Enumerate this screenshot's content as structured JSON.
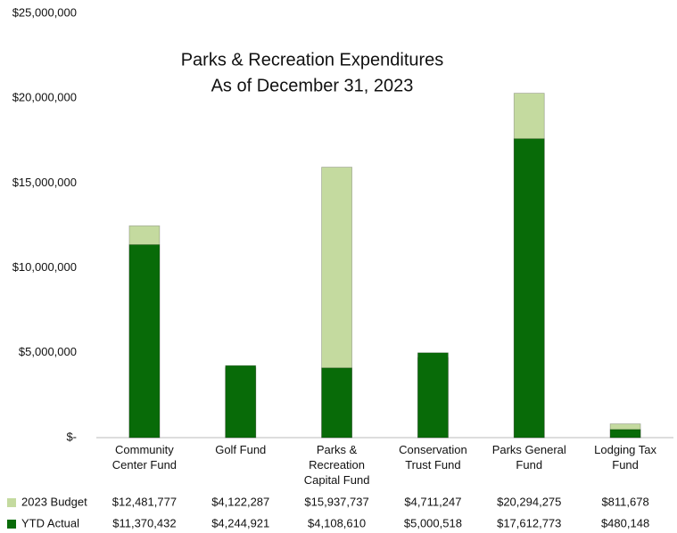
{
  "chart_data": {
    "type": "bar",
    "title": "Parks & Recreation Expenditures",
    "subtitle": "As of December 31, 2023",
    "categories": [
      "Community Center Fund",
      "Golf Fund",
      "Parks & Recreation Capital Fund",
      "Conservation Trust Fund",
      "Parks General Fund",
      "Lodging Tax Fund"
    ],
    "series": [
      {
        "name": "2023 Budget",
        "color": "#c4da9f",
        "values": [
          12481777,
          4122287,
          15937737,
          4711247,
          20294275,
          811678
        ],
        "value_labels": [
          "$12,481,777",
          "$4,122,287",
          "$15,937,737",
          "$4,711,247",
          "$20,294,275",
          "$811,678"
        ]
      },
      {
        "name": "YTD Actual",
        "color": "#086b08",
        "values": [
          11370432,
          4244921,
          4108610,
          5000518,
          17612773,
          480148
        ],
        "value_labels": [
          "$11,370,432",
          "$4,244,921",
          "$4,108,610",
          "$5,000,518",
          "$17,612,773",
          "$480,148"
        ]
      }
    ],
    "ylim": [
      0,
      25000000
    ],
    "yticks": [
      {
        "value": 0,
        "label": "$-"
      },
      {
        "value": 5000000,
        "label": "$5,000,000"
      },
      {
        "value": 10000000,
        "label": "$10,000,000"
      },
      {
        "value": 15000000,
        "label": "$15,000,000"
      },
      {
        "value": 20000000,
        "label": "$20,000,000"
      },
      {
        "value": 25000000,
        "label": "$25,000,000"
      }
    ]
  }
}
